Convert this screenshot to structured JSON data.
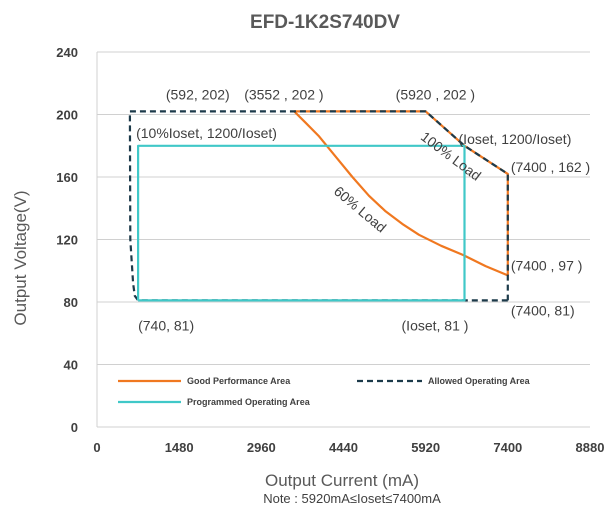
{
  "chart_data": {
    "type": "line",
    "title": "EFD-1K2S740DV",
    "xlabel": "Output Current (mA)",
    "ylabel": "Output Voltage(V)",
    "note": "Note :  5920mA≤Ioset≤7400mA",
    "xlim": [
      0,
      8880
    ],
    "ylim": [
      0,
      240
    ],
    "xticks": [
      0,
      1480,
      2960,
      4440,
      5920,
      7400,
      8880
    ],
    "yticks": [
      0,
      40,
      80,
      120,
      160,
      200,
      240
    ],
    "grid": "horizontal",
    "legend_position": "bottom-left",
    "series": [
      {
        "name": "Good Performance Area",
        "color": "#F07820",
        "style": "solid",
        "points": [
          [
            3552,
            202
          ],
          [
            5920,
            202
          ],
          [
            6620,
            180
          ],
          [
            7400,
            162
          ],
          [
            7400,
            97
          ],
          [
            7000,
            103
          ],
          [
            6600,
            110
          ],
          [
            6200,
            116
          ],
          [
            5800,
            123
          ],
          [
            5500,
            130
          ],
          [
            5200,
            138
          ],
          [
            4900,
            148
          ],
          [
            4600,
            160
          ],
          [
            4300,
            173
          ],
          [
            4000,
            186
          ],
          [
            3750,
            195
          ],
          [
            3552,
            202
          ]
        ]
      },
      {
        "name": "Allowed Operating Area",
        "color": "#1C3A4A",
        "style": "dashed",
        "points": [
          [
            7400,
            81
          ],
          [
            740,
            81
          ],
          [
            680,
            84
          ],
          [
            650,
            92
          ],
          [
            600,
            120
          ],
          [
            592,
            202
          ],
          [
            5920,
            202
          ],
          [
            6620,
            180
          ],
          [
            7400,
            162
          ],
          [
            7400,
            81
          ]
        ]
      },
      {
        "name": "Programmed Operating Area",
        "color": "#40C8C8",
        "style": "solid",
        "points": [
          [
            740,
            81
          ],
          [
            6620,
            81
          ],
          [
            6620,
            180
          ],
          [
            740,
            180
          ],
          [
            740,
            81
          ]
        ]
      }
    ],
    "annotations": [
      {
        "text": "(592, 202)",
        "x": 592,
        "y": 202
      },
      {
        "text": "(3552 , 202 )",
        "x": 3552,
        "y": 202
      },
      {
        "text": "(5920 , 202 )",
        "x": 5920,
        "y": 202
      },
      {
        "text": "(10%Ioset, 1200/Ioset)",
        "x": 740,
        "y": 180
      },
      {
        "text": "(Ioset, 1200/Ioset)",
        "x": 6620,
        "y": 180
      },
      {
        "text": "(7400 , 162 )",
        "x": 7400,
        "y": 162
      },
      {
        "text": "(7400 , 97 )",
        "x": 7400,
        "y": 97
      },
      {
        "text": "(7400, 81)",
        "x": 7400,
        "y": 81
      },
      {
        "text": "(Ioset, 81 )",
        "x": 6620,
        "y": 81
      },
      {
        "text": "(740, 81)",
        "x": 740,
        "y": 81
      }
    ],
    "curve_labels": [
      {
        "text": "100% Load",
        "rotation_deg": 37
      },
      {
        "text": "60% Load",
        "rotation_deg": 40
      }
    ]
  }
}
